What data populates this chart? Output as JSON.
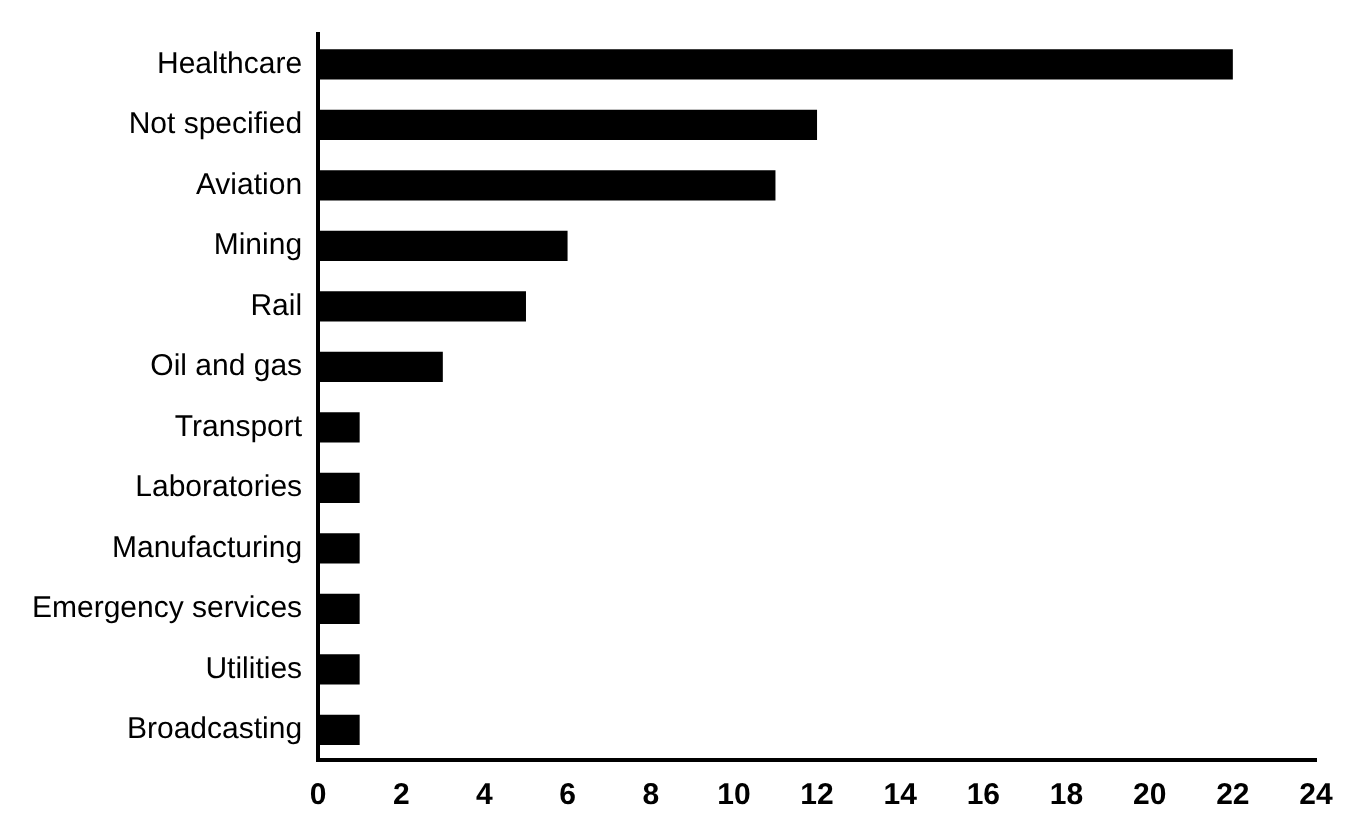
{
  "chart_data": {
    "type": "bar",
    "orientation": "horizontal",
    "categories": [
      "Healthcare",
      "Not specified",
      "Aviation",
      "Mining",
      "Rail",
      "Oil and gas",
      "Transport",
      "Laboratories",
      "Manufacturing",
      "Emergency services",
      "Utilities",
      "Broadcasting"
    ],
    "values": [
      22,
      12,
      11,
      6,
      5,
      3,
      1,
      1,
      1,
      1,
      1,
      1
    ],
    "color": "#000000",
    "xlim": [
      0,
      24
    ],
    "xticks": [
      0,
      2,
      4,
      6,
      8,
      10,
      12,
      14,
      16,
      18,
      20,
      22,
      24
    ],
    "grid": false,
    "legend": false
  }
}
